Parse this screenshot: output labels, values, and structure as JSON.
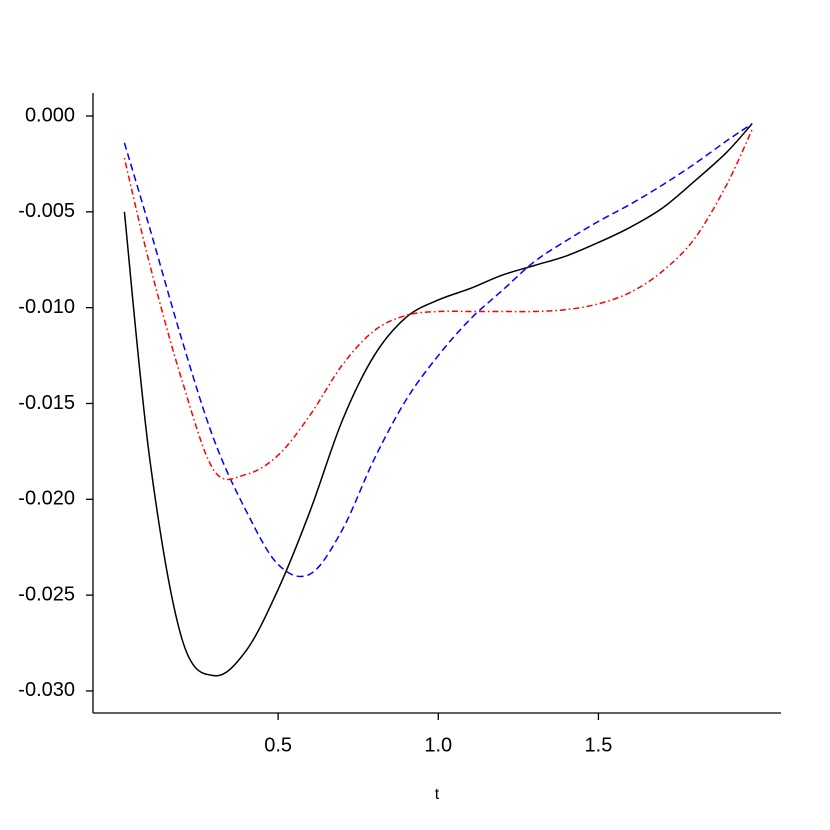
{
  "chart_data": {
    "type": "line",
    "x_label": "t",
    "x": [
      0.02,
      0.1,
      0.2,
      0.3,
      0.4,
      0.5,
      0.6,
      0.7,
      0.8,
      0.9,
      1.0,
      1.1,
      1.2,
      1.3,
      1.4,
      1.5,
      1.6,
      1.7,
      1.8,
      1.9,
      1.98
    ],
    "series": [
      {
        "color": "#000000",
        "linestyle": "solid",
        "values": [
          -0.005,
          -0.018,
          -0.0273,
          -0.0292,
          -0.0279,
          -0.0247,
          -0.0206,
          -0.0159,
          -0.0125,
          -0.0105,
          -0.0096,
          -0.009,
          -0.0083,
          -0.0078,
          -0.0073,
          -0.0066,
          -0.0058,
          -0.0048,
          -0.0034,
          -0.0019,
          -0.0004
        ]
      },
      {
        "color": "#0000ff",
        "linestyle": "dashed",
        "values": [
          -0.0014,
          -0.0059,
          -0.0117,
          -0.0169,
          -0.0206,
          -0.0234,
          -0.0239,
          -0.0216,
          -0.0179,
          -0.0148,
          -0.0125,
          -0.0106,
          -0.0091,
          -0.0076,
          -0.0065,
          -0.0055,
          -0.0046,
          -0.0036,
          -0.0025,
          -0.0013,
          -0.0004
        ]
      },
      {
        "color": "#ff0000",
        "linestyle": "dotdash",
        "values": [
          -0.0022,
          -0.0078,
          -0.0138,
          -0.0185,
          -0.0187,
          -0.0177,
          -0.0156,
          -0.013,
          -0.0112,
          -0.0104,
          -0.0102,
          -0.0102,
          -0.0102,
          -0.0102,
          -0.0101,
          -0.0098,
          -0.0092,
          -0.0081,
          -0.0064,
          -0.0036,
          -0.0007
        ]
      }
    ],
    "xlim": [
      -0.078,
      2.07
    ],
    "xticks": [
      0.5,
      {
        "value": 1,
        "label": "1.0"
      },
      1.5
    ],
    "ylim": [
      -0.03115,
      0.0012
    ],
    "yticks": [
      {
        "value": 0,
        "label": "0.000"
      },
      {
        "value": -0.005,
        "label": "-0.005"
      },
      {
        "value": -0.01,
        "label": "-0.010"
      },
      {
        "value": -0.015,
        "label": "-0.015"
      },
      {
        "value": -0.02,
        "label": "-0.020"
      },
      {
        "value": -0.025,
        "label": "-0.025"
      },
      {
        "value": -0.03,
        "label": "-0.030"
      }
    ],
    "grid": false
  }
}
